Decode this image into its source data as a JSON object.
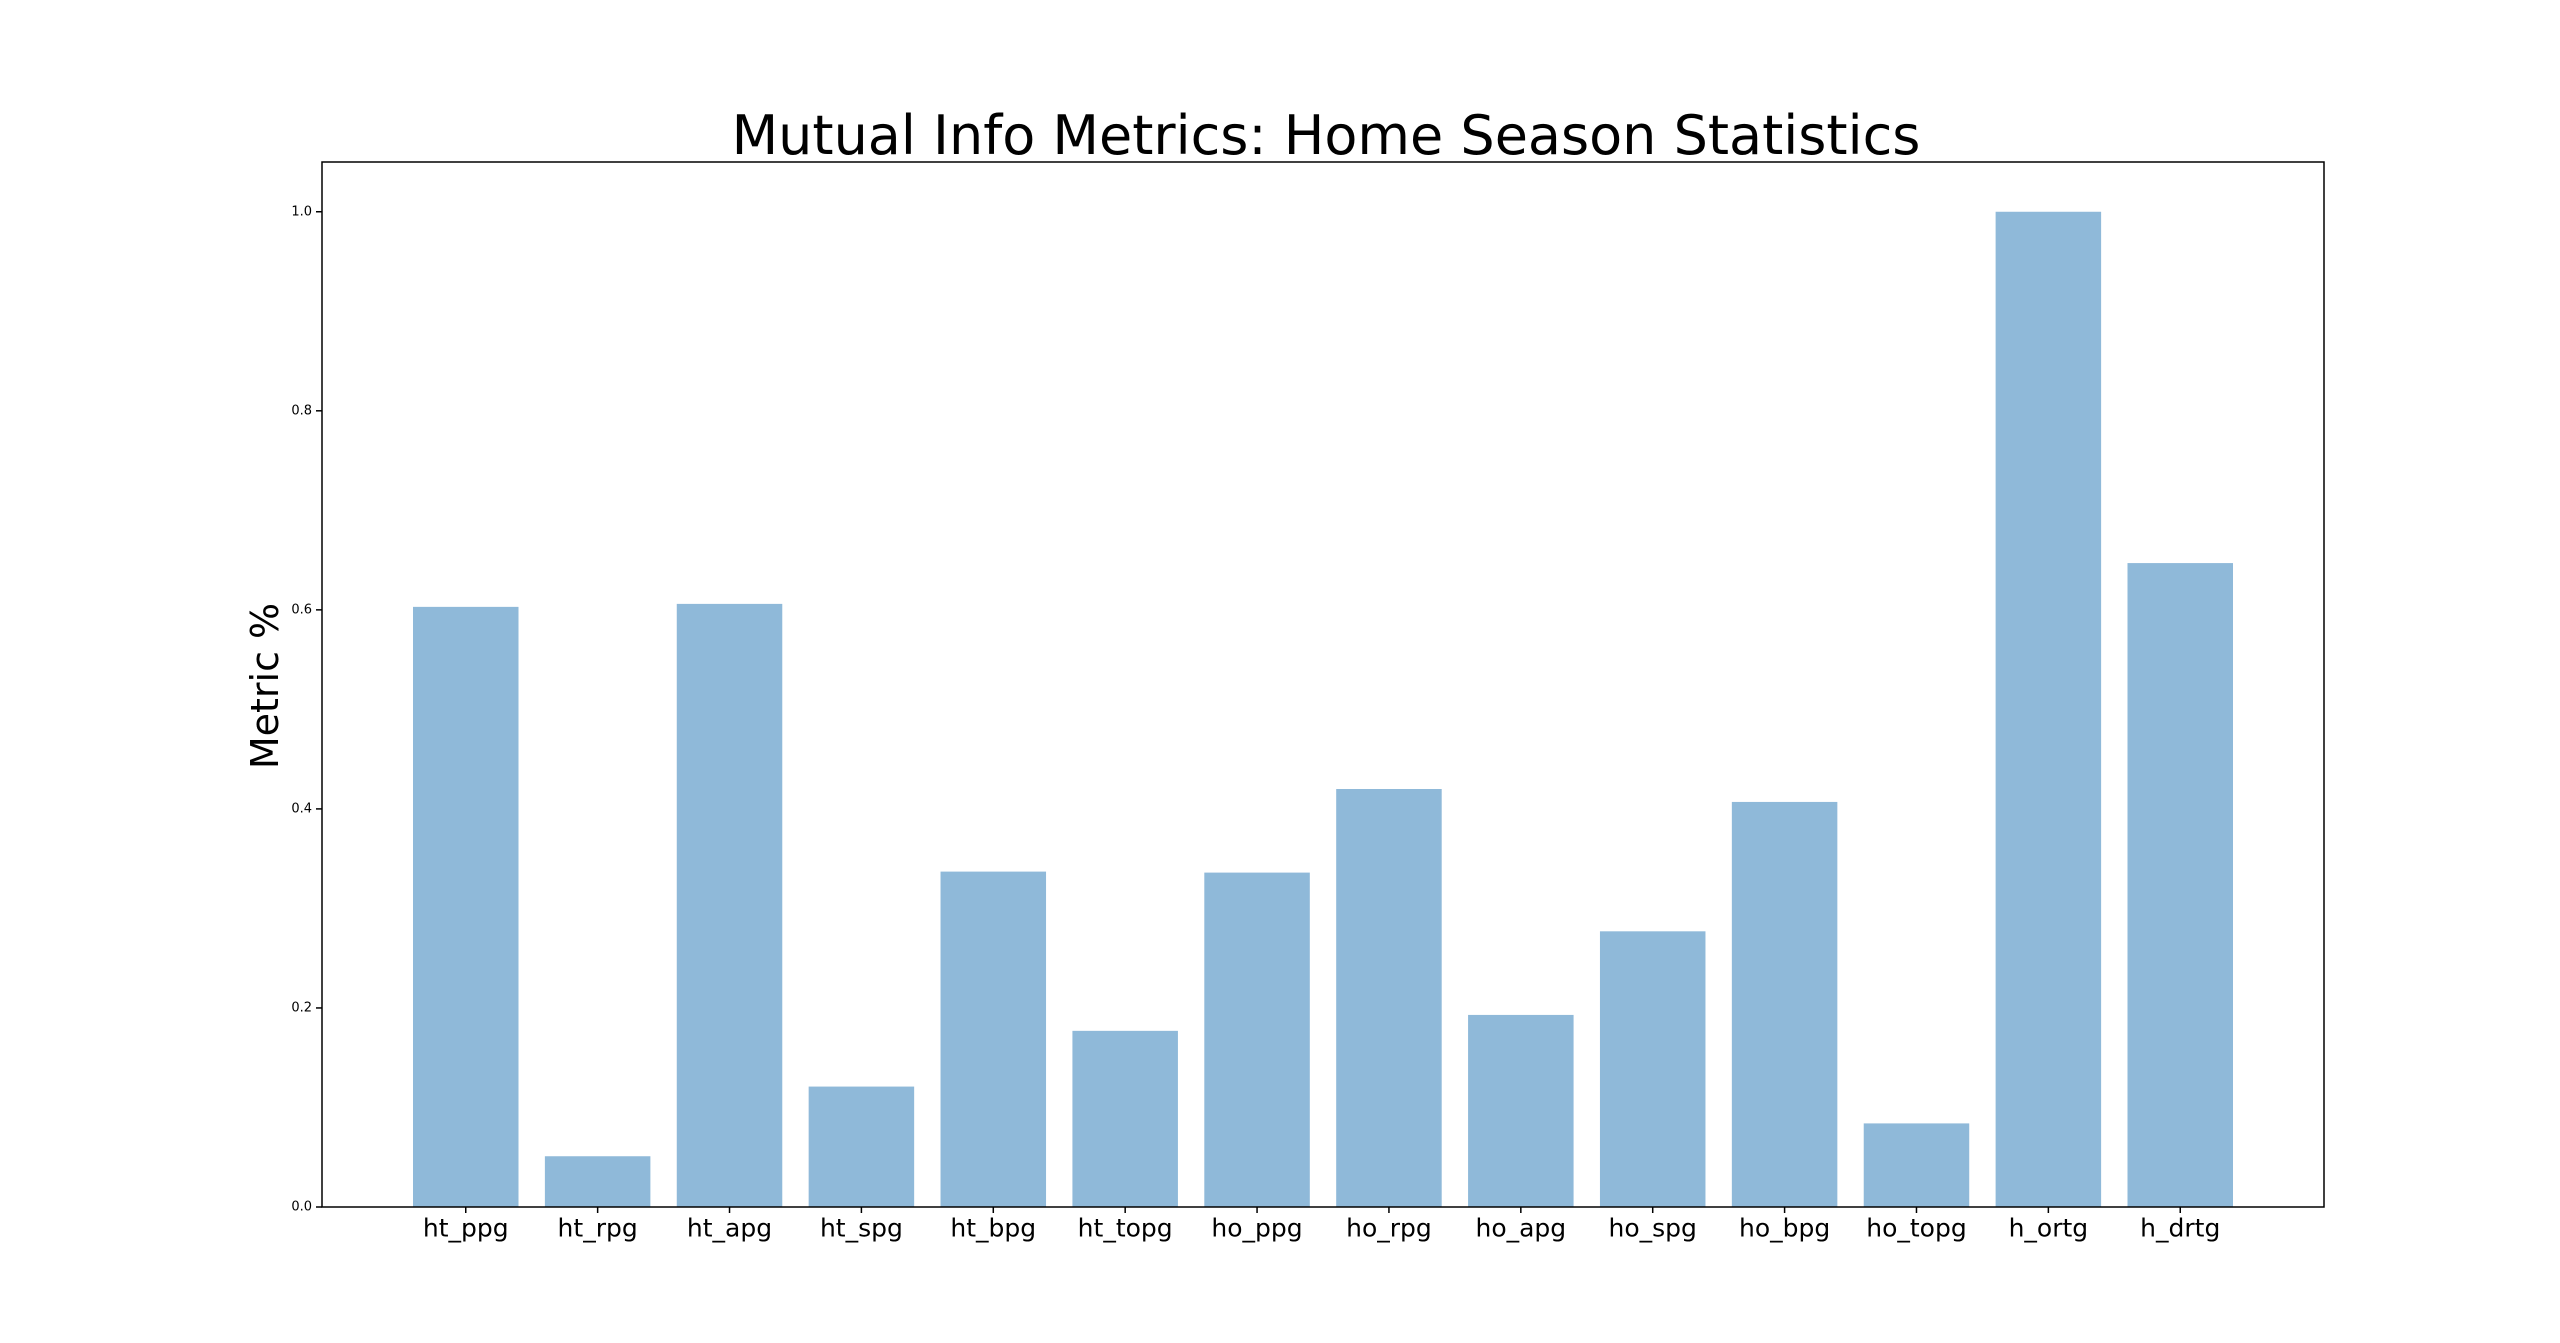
{
  "chart_data": {
    "type": "bar",
    "title": "Mutual Info Metrics: Home Season Statistics",
    "xlabel": "",
    "ylabel": "Metric %",
    "categories": [
      "ht_ppg",
      "ht_rpg",
      "ht_apg",
      "ht_spg",
      "ht_bpg",
      "ht_topg",
      "ho_ppg",
      "ho_rpg",
      "ho_apg",
      "ho_spg",
      "ho_bpg",
      "ho_topg",
      "h_ortg",
      "h_drtg"
    ],
    "values": [
      0.603,
      0.051,
      0.606,
      0.121,
      0.337,
      0.177,
      0.336,
      0.42,
      0.193,
      0.277,
      0.407,
      0.084,
      1.0,
      0.647
    ],
    "ylim": [
      0,
      1.05
    ],
    "yticks": [
      "0.0",
      "0.2",
      "0.4",
      "0.6",
      "0.8",
      "1.0"
    ],
    "grid": false,
    "bar_color": "#8fb9d9"
  }
}
